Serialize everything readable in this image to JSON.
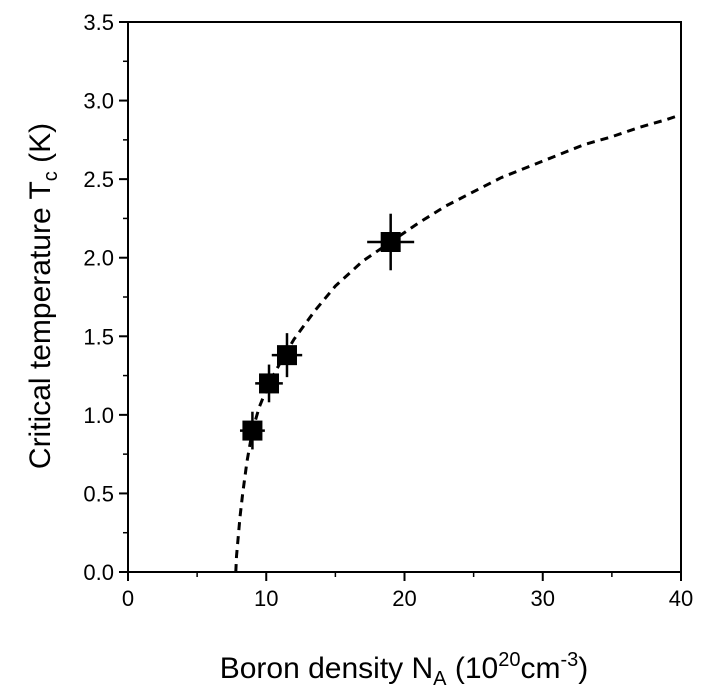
{
  "chart_data": {
    "type": "scatter",
    "xlabel": {
      "main": "Boron density N",
      "main_sub": "A",
      "unit_open": " (10",
      "unit_sup1": "20",
      "unit_mid": "cm",
      "unit_sup2": "-3",
      "unit_close": ")"
    },
    "ylabel": {
      "main": "Critical temperature T",
      "main_sub": "c",
      "unit": " (K)"
    },
    "xlim": [
      0,
      40
    ],
    "ylim": [
      0,
      3.5
    ],
    "x_ticks": [
      0,
      10,
      20,
      30,
      40
    ],
    "x_tick_labels": [
      "0",
      "10",
      "20",
      "30",
      "40"
    ],
    "y_ticks": [
      0.0,
      0.5,
      1.0,
      1.5,
      2.0,
      2.5,
      3.0,
      3.5
    ],
    "y_tick_labels": [
      "0.0",
      "0.5",
      "1.0",
      "1.5",
      "2.0",
      "2.5",
      "3.0",
      "3.5"
    ],
    "grid": false,
    "series": [
      {
        "kind": "points",
        "marker": "square",
        "color": "#000000",
        "points": [
          {
            "x": 9.0,
            "y": 0.9,
            "xerr": 0.9,
            "yerr": 0.12
          },
          {
            "x": 10.2,
            "y": 1.2,
            "xerr": 1.0,
            "yerr": 0.12
          },
          {
            "x": 11.5,
            "y": 1.38,
            "xerr": 1.1,
            "yerr": 0.14
          },
          {
            "x": 19.0,
            "y": 2.1,
            "xerr": 1.7,
            "yerr": 0.18
          }
        ]
      },
      {
        "kind": "fit-curve",
        "style": "dashed",
        "color": "#000000",
        "points": [
          {
            "x": 7.8,
            "y": 0.0
          },
          {
            "x": 7.85,
            "y": 0.1
          },
          {
            "x": 7.95,
            "y": 0.2
          },
          {
            "x": 8.1,
            "y": 0.35
          },
          {
            "x": 8.3,
            "y": 0.5
          },
          {
            "x": 8.6,
            "y": 0.7
          },
          {
            "x": 9.0,
            "y": 0.9
          },
          {
            "x": 9.5,
            "y": 1.05
          },
          {
            "x": 10.2,
            "y": 1.2
          },
          {
            "x": 11.0,
            "y": 1.33
          },
          {
            "x": 12.0,
            "y": 1.48
          },
          {
            "x": 13.5,
            "y": 1.66
          },
          {
            "x": 15.0,
            "y": 1.82
          },
          {
            "x": 17.0,
            "y": 1.98
          },
          {
            "x": 19.0,
            "y": 2.1
          },
          {
            "x": 21.0,
            "y": 2.22
          },
          {
            "x": 23.0,
            "y": 2.33
          },
          {
            "x": 25.0,
            "y": 2.42
          },
          {
            "x": 27.0,
            "y": 2.51
          },
          {
            "x": 29.0,
            "y": 2.58
          },
          {
            "x": 31.0,
            "y": 2.65
          },
          {
            "x": 33.0,
            "y": 2.72
          },
          {
            "x": 35.0,
            "y": 2.77
          },
          {
            "x": 37.0,
            "y": 2.83
          },
          {
            "x": 39.0,
            "y": 2.88
          },
          {
            "x": 40.0,
            "y": 2.91
          }
        ]
      }
    ]
  }
}
